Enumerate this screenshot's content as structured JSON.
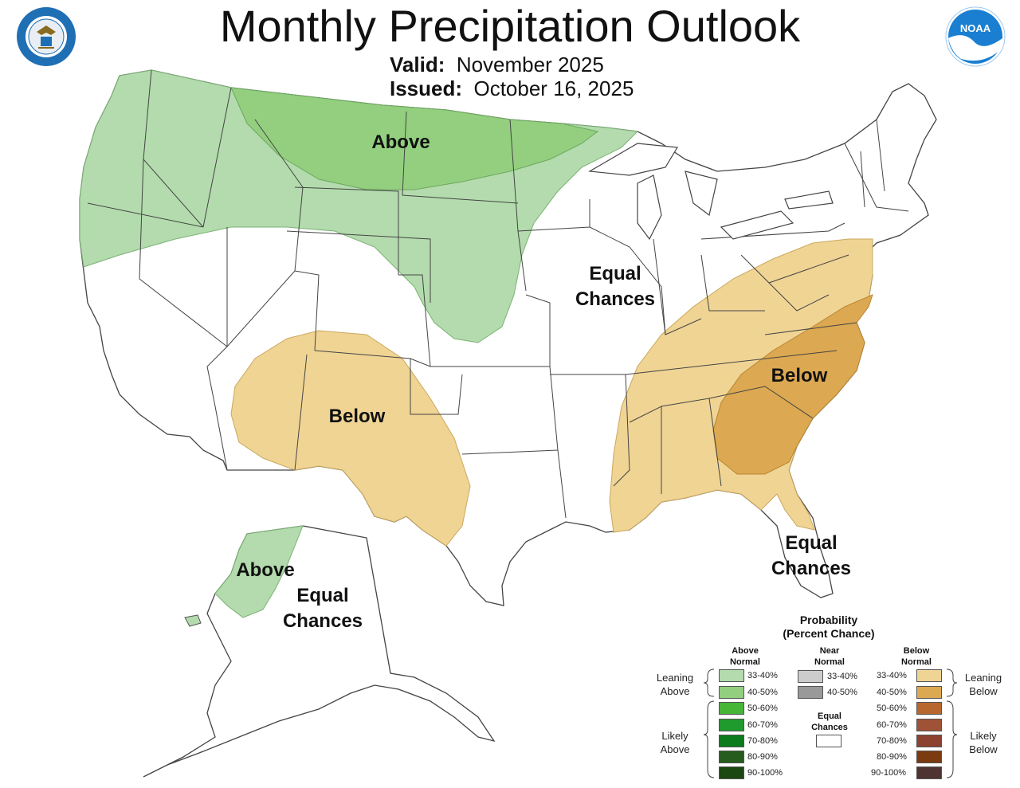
{
  "header": {
    "title": "Monthly Precipitation Outlook",
    "valid_label": "Valid:",
    "valid_value": "November 2025",
    "issued_label": "Issued:",
    "issued_value": "October 16, 2025"
  },
  "logos": {
    "doc_seal_text": "DEPARTMENT OF COMMERCE · UNITED STATES OF AMERICA",
    "noaa_text": "NOAA"
  },
  "map_labels": {
    "north_above": "Above",
    "central_ec_1": "Equal",
    "central_ec_2": "Chances",
    "sw_below": "Below",
    "se_below": "Below",
    "fl_ec_1": "Equal",
    "fl_ec_2": "Chances",
    "ak_above": "Above",
    "ak_ec_1": "Equal",
    "ak_ec_2": "Chances"
  },
  "colors": {
    "above_33_40": "#b3dbad",
    "above_40_50": "#93cf7f",
    "above_50_60": "#45b638",
    "above_60_70": "#1f9a2d",
    "above_70_80": "#0c7b1c",
    "above_80_90": "#265c1d",
    "above_90_100": "#1b4711",
    "near_33_40": "#cccccc",
    "near_40_50": "#999999",
    "below_33_40": "#f0d494",
    "below_40_50": "#dca851",
    "below_50_60": "#b8682f",
    "below_60_70": "#9f5236",
    "below_70_80": "#8c4131",
    "below_80_90": "#7c3a10",
    "below_90_100": "#4f3333",
    "equal": "#ffffff"
  },
  "legend": {
    "title_1": "Probability",
    "title_2": "(Percent Chance)",
    "above_header_1": "Above",
    "above_header_2": "Normal",
    "near_header_1": "Near",
    "near_header_2": "Normal",
    "below_header_1": "Below",
    "below_header_2": "Normal",
    "equal_1": "Equal",
    "equal_2": "Chances",
    "leaning_above_1": "Leaning",
    "leaning_above_2": "Above",
    "likely_above_1": "Likely",
    "likely_above_2": "Above",
    "leaning_below_1": "Leaning",
    "leaning_below_2": "Below",
    "likely_below_1": "Likely",
    "likely_below_2": "Below",
    "above_ranges": [
      "33-40%",
      "40-50%",
      "50-60%",
      "60-70%",
      "70-80%",
      "80-90%",
      "90-100%"
    ],
    "near_ranges": [
      "33-40%",
      "40-50%"
    ],
    "below_ranges": [
      "33-40%",
      "40-50%",
      "50-60%",
      "60-70%",
      "70-80%",
      "80-90%",
      "90-100%"
    ]
  }
}
